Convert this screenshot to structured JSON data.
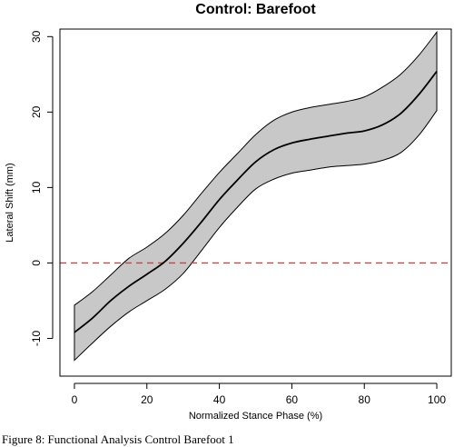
{
  "caption": "Figure 8: Functional Analysis Control Barefoot 1",
  "chart_data": {
    "type": "line",
    "title": "Control: Barefoot",
    "xlabel": "Normalized Stance Phase (%)",
    "ylabel": "Lateral Shift (mm)",
    "xlim": [
      -4,
      104
    ],
    "ylim": [
      -15,
      31
    ],
    "x_ticks": [
      0,
      20,
      40,
      60,
      80,
      100
    ],
    "y_ticks": [
      -10,
      0,
      10,
      20,
      30
    ],
    "grid": false,
    "legend": "none",
    "x": [
      0,
      5,
      10,
      15,
      20,
      25,
      30,
      35,
      40,
      45,
      50,
      55,
      60,
      65,
      70,
      75,
      80,
      85,
      90,
      95,
      100
    ],
    "series": [
      {
        "role": "upper",
        "values": [
          -5.6,
          -3.8,
          -1.6,
          0.6,
          2.1,
          3.9,
          6.3,
          9.2,
          12.0,
          14.5,
          17.0,
          18.9,
          20.0,
          20.6,
          21.0,
          21.4,
          22.0,
          23.3,
          25.0,
          27.5,
          30.6
        ]
      },
      {
        "role": "mean",
        "values": [
          -9.2,
          -7.3,
          -5.0,
          -3.1,
          -1.5,
          0.2,
          2.6,
          5.4,
          8.4,
          11.0,
          13.4,
          15.0,
          15.9,
          16.4,
          16.8,
          17.2,
          17.5,
          18.3,
          19.8,
          22.3,
          25.4
        ]
      },
      {
        "role": "lower",
        "values": [
          -12.9,
          -10.6,
          -8.4,
          -6.5,
          -5.0,
          -3.5,
          -1.4,
          1.6,
          4.7,
          7.4,
          9.8,
          11.1,
          11.9,
          12.3,
          12.7,
          12.9,
          13.1,
          13.6,
          14.6,
          16.9,
          20.2
        ]
      }
    ],
    "reference_line": {
      "y": 0
    },
    "colors": {
      "band": "#c8c8c8",
      "line": "#000000",
      "reference": "#ee3333"
    }
  }
}
